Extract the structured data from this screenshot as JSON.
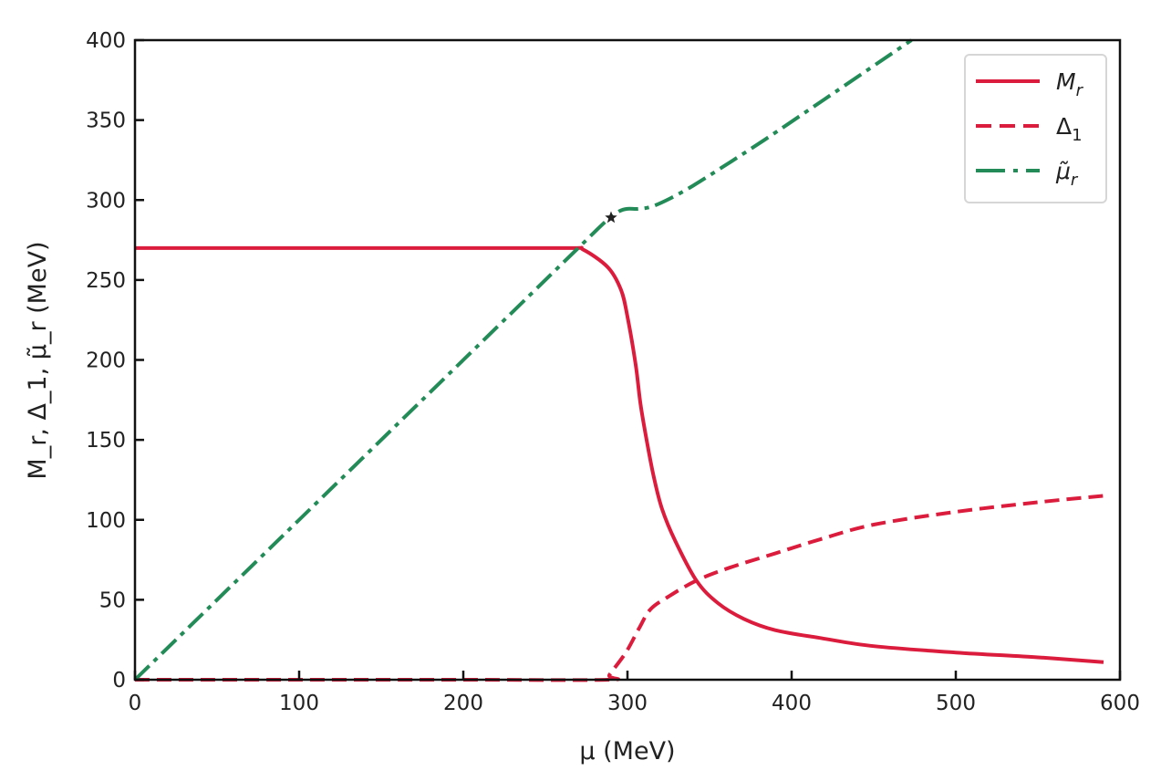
{
  "chart_data": {
    "type": "line",
    "title": "",
    "xlabel": "μ (MeV)",
    "ylabel": "M_r, Δ_1, μ̃_r (MeV)",
    "xlim": [
      0,
      600
    ],
    "ylim": [
      0,
      400
    ],
    "xticks": [
      0,
      100,
      200,
      300,
      400,
      500,
      600
    ],
    "yticks": [
      0,
      50,
      100,
      150,
      200,
      250,
      300,
      350,
      400
    ],
    "grid": false,
    "legend_position": "top-right",
    "series": [
      {
        "name": "M_r",
        "label_main": "M",
        "label_sub": "r",
        "color": "#dc1c3c",
        "style": "solid",
        "x": [
          0,
          100,
          200,
          265,
          273,
          288,
          296,
          300,
          305,
          308,
          312,
          316,
          321,
          329,
          342,
          355,
          371,
          390,
          418,
          450,
          500,
          550,
          590
        ],
        "y": [
          270,
          270,
          270,
          270,
          269,
          258,
          244,
          227,
          197,
          172,
          148,
          127,
          107,
          87,
          62,
          48,
          38,
          31,
          26,
          21,
          17,
          14,
          11
        ]
      },
      {
        "name": "Δ_1",
        "label_main": "Δ",
        "label_sub": "1",
        "color": "#dc1c3c",
        "style": "dashed",
        "x": [
          0,
          100,
          200,
          288,
          289,
          299,
          307,
          314,
          325,
          342,
          362,
          390,
          418,
          450,
          500,
          550,
          590
        ],
        "y": [
          0,
          0,
          0,
          0,
          3,
          17,
          32,
          44,
          52,
          62,
          70,
          79,
          88,
          97,
          105,
          111,
          115
        ]
      },
      {
        "name": "μ̃_r",
        "label_main": "μ̃",
        "label_sub": "r",
        "color": "#238b57",
        "style": "dashdot",
        "x": [
          0,
          100,
          200,
          270,
          285,
          290,
          295,
          300,
          307,
          315,
          326,
          340,
          360,
          384,
          420,
          473
        ],
        "y": [
          0,
          100,
          200,
          270,
          285,
          289,
          293,
          294.5,
          294.5,
          296,
          301,
          309,
          322,
          338,
          363,
          400
        ]
      }
    ],
    "annotations": [
      {
        "type": "star-marker",
        "x": 290,
        "y": 289,
        "color": "#222222"
      }
    ]
  }
}
